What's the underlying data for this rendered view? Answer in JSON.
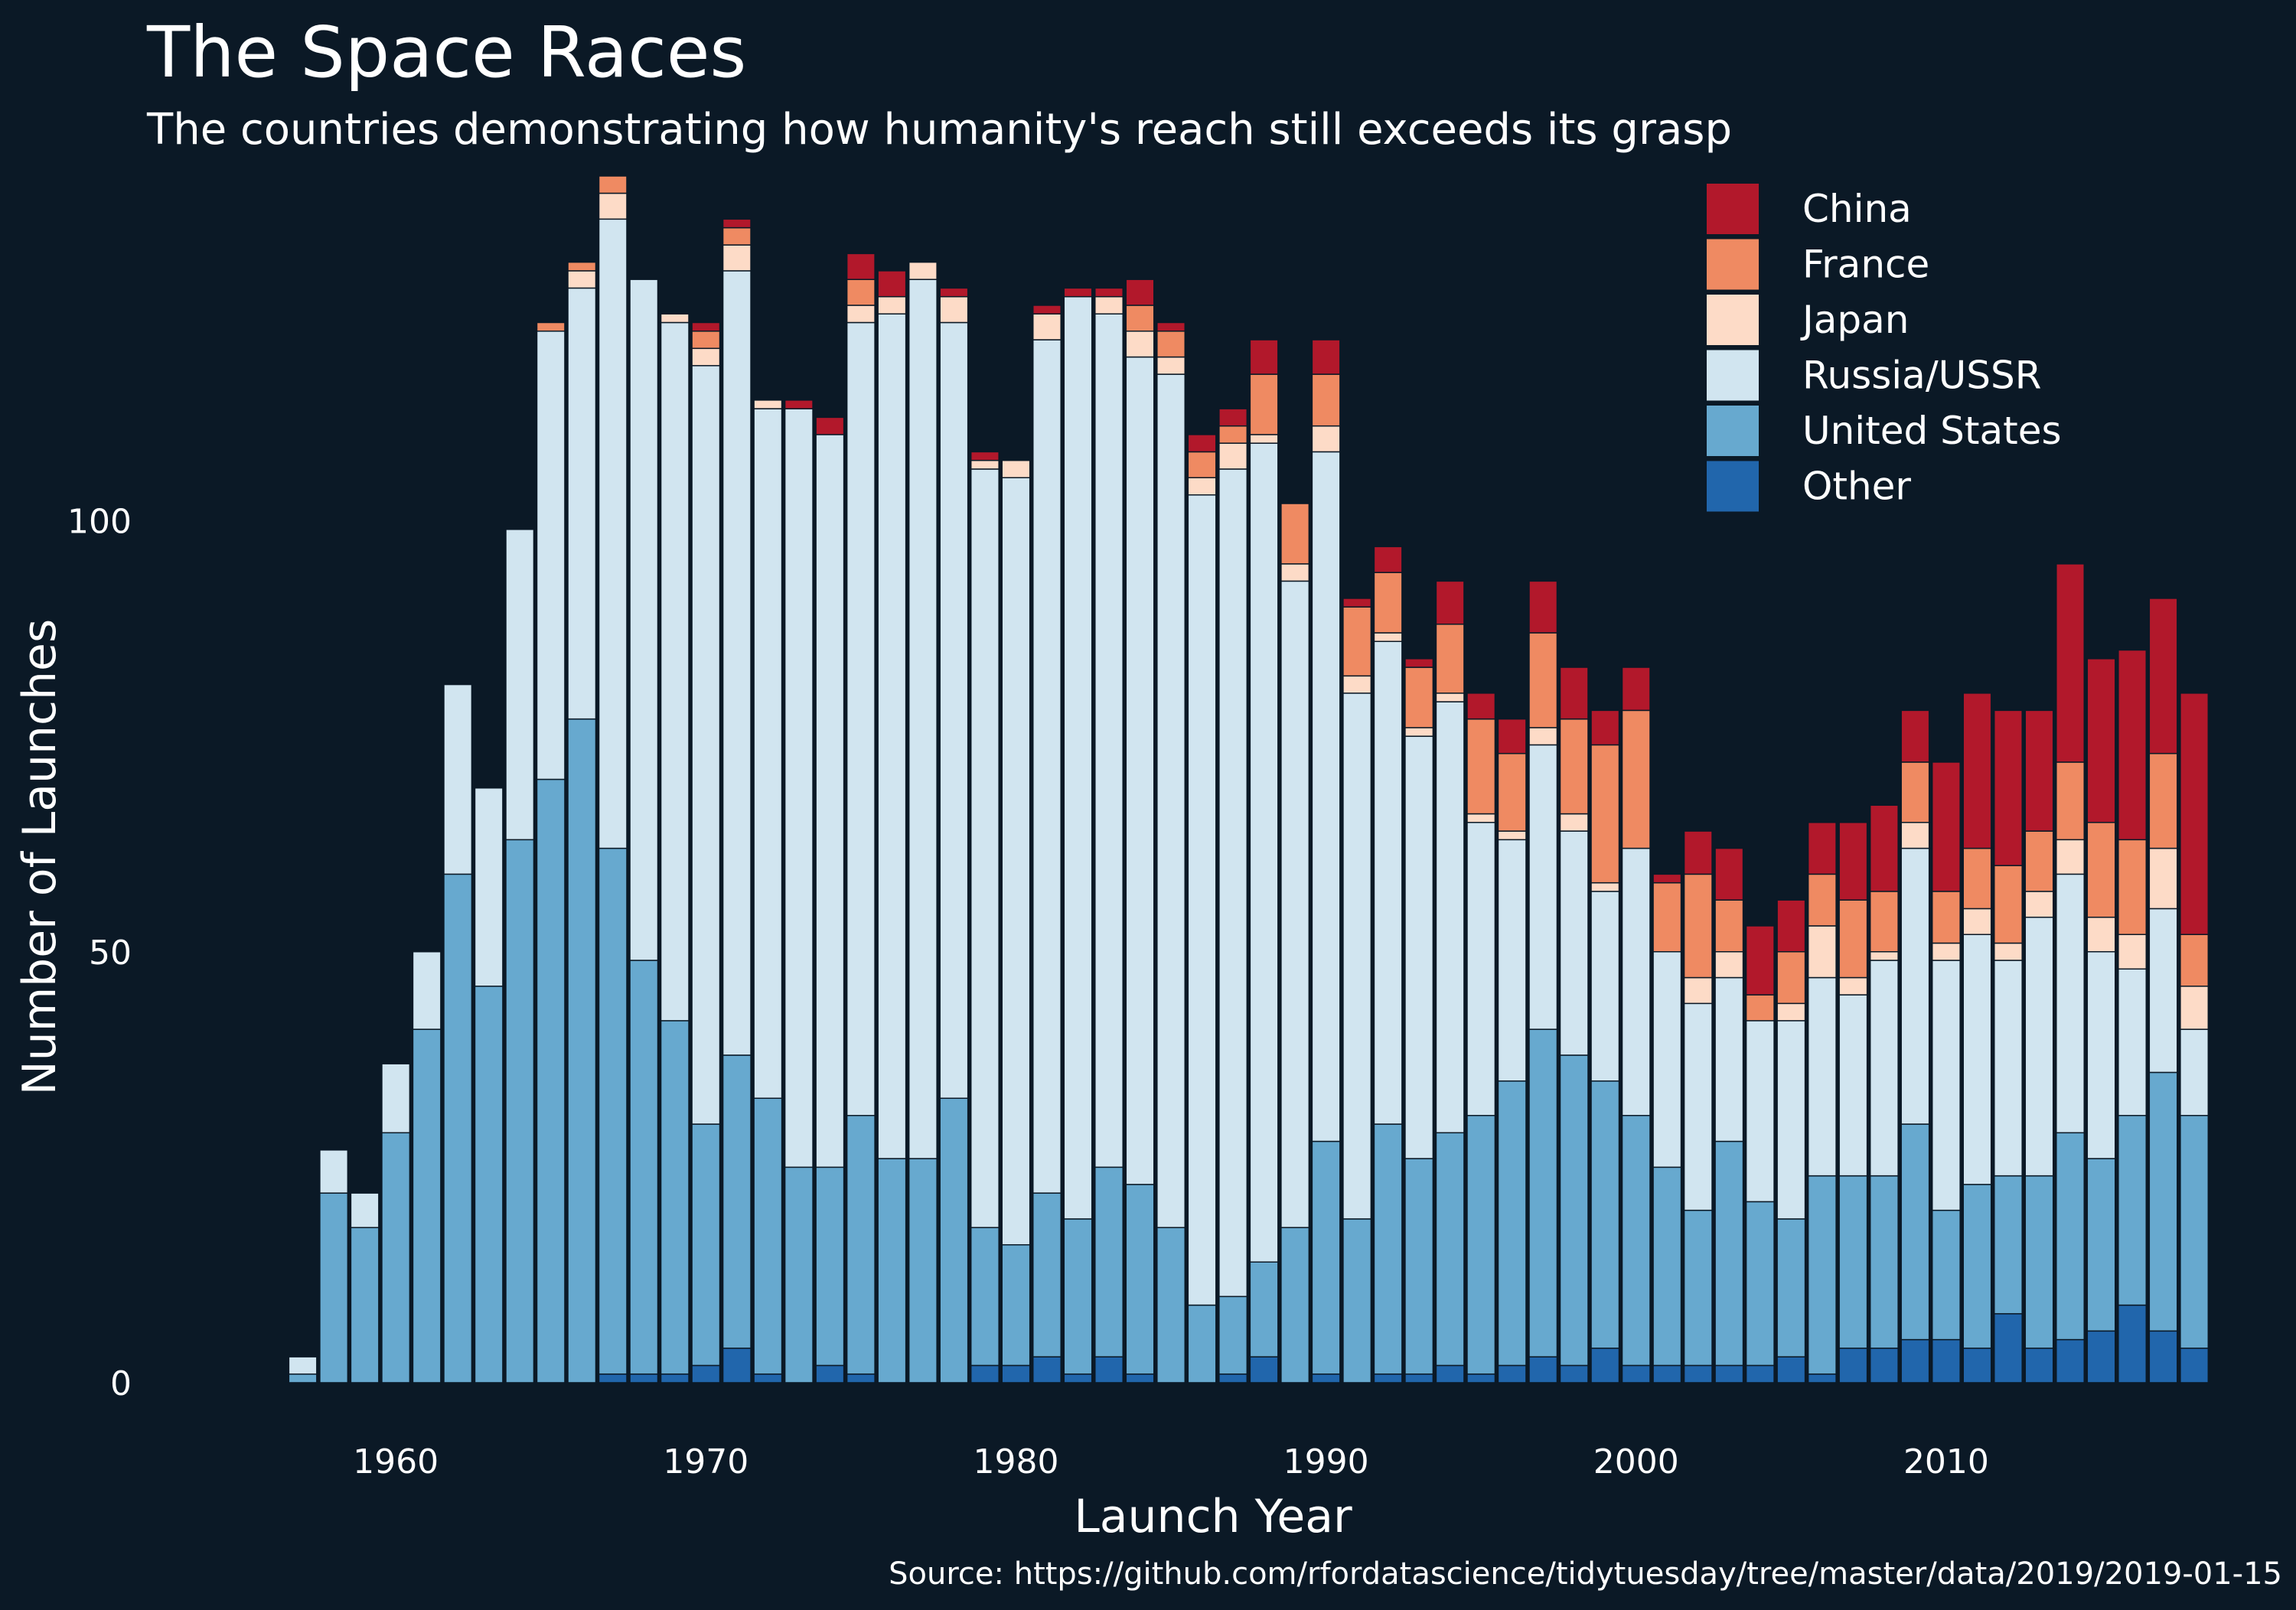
{
  "chart_data": {
    "type": "bar",
    "stacked": true,
    "title": "The Space Races",
    "subtitle": "The countries demonstrating how humanity's reach still exceeds its grasp",
    "xlabel": "Launch Year",
    "ylabel": "Number of Launches",
    "caption": "Source: https://github.com/rfordatascience/tidytuesday/tree/master/data/2019/2019-01-15",
    "xlim": [
      1953.9,
      2019.8
    ],
    "ylim": [
      -4,
      140
    ],
    "x_ticks": [
      1960,
      1970,
      1980,
      1990,
      2000,
      2010
    ],
    "y_ticks": [
      0,
      50,
      100
    ],
    "legend_position": "top-right",
    "grid": false,
    "categories": [
      1957,
      1958,
      1959,
      1960,
      1961,
      1962,
      1963,
      1964,
      1965,
      1966,
      1967,
      1968,
      1969,
      1970,
      1971,
      1972,
      1973,
      1974,
      1975,
      1976,
      1977,
      1978,
      1979,
      1980,
      1981,
      1982,
      1983,
      1984,
      1985,
      1986,
      1987,
      1988,
      1989,
      1990,
      1991,
      1992,
      1993,
      1994,
      1995,
      1996,
      1997,
      1998,
      1999,
      2000,
      2001,
      2002,
      2003,
      2004,
      2005,
      2006,
      2007,
      2008,
      2009,
      2010,
      2011,
      2012,
      2013,
      2014,
      2015,
      2016,
      2017,
      2018
    ],
    "series": [
      {
        "name": "Other",
        "color": "#2166ac",
        "values": [
          0,
          0,
          0,
          0,
          0,
          0,
          0,
          0,
          0,
          0,
          1,
          1,
          1,
          2,
          4,
          1,
          0,
          2,
          1,
          0,
          0,
          0,
          2,
          2,
          3,
          1,
          3,
          1,
          0,
          0,
          1,
          3,
          0,
          1,
          0,
          1,
          1,
          2,
          1,
          2,
          3,
          2,
          4,
          2,
          2,
          2,
          2,
          2,
          3,
          1,
          4,
          4,
          5,
          5,
          4,
          8,
          4,
          5,
          6,
          9,
          6,
          4
        ]
      },
      {
        "name": "United States",
        "color": "#67a9cf",
        "values": [
          1,
          22,
          18,
          29,
          41,
          59,
          46,
          63,
          70,
          77,
          61,
          48,
          41,
          28,
          34,
          32,
          25,
          23,
          30,
          26,
          26,
          33,
          16,
          14,
          19,
          18,
          22,
          22,
          18,
          9,
          9,
          11,
          18,
          27,
          19,
          29,
          25,
          27,
          30,
          33,
          38,
          36,
          31,
          29,
          23,
          18,
          26,
          19,
          16,
          23,
          20,
          20,
          25,
          15,
          19,
          16,
          20,
          24,
          20,
          22,
          30,
          27
        ]
      },
      {
        "name": "Russia/USSR",
        "color": "#d1e5f0",
        "values": [
          2,
          5,
          4,
          8,
          9,
          22,
          23,
          36,
          52,
          50,
          73,
          79,
          81,
          88,
          91,
          80,
          88,
          85,
          92,
          98,
          102,
          90,
          88,
          89,
          99,
          107,
          99,
          96,
          99,
          94,
          96,
          95,
          75,
          80,
          61,
          56,
          49,
          50,
          34,
          28,
          33,
          26,
          22,
          31,
          25,
          24,
          19,
          21,
          23,
          23,
          21,
          25,
          32,
          29,
          29,
          25,
          30,
          30,
          24,
          17,
          19,
          10
        ]
      },
      {
        "name": "Japan",
        "color": "#fddbc7",
        "values": [
          0,
          0,
          0,
          0,
          0,
          0,
          0,
          0,
          0,
          2,
          3,
          0,
          1,
          2,
          3,
          1,
          0,
          0,
          2,
          2,
          2,
          3,
          1,
          2,
          3,
          0,
          2,
          3,
          2,
          2,
          3,
          1,
          2,
          3,
          2,
          1,
          1,
          1,
          1,
          1,
          2,
          2,
          1,
          0,
          0,
          3,
          3,
          0,
          2,
          6,
          2,
          1,
          3,
          2,
          3,
          2,
          3,
          4,
          4,
          4,
          7,
          5
        ]
      },
      {
        "name": "France",
        "color": "#ef8a62",
        "values": [
          0,
          0,
          0,
          0,
          0,
          0,
          0,
          0,
          1,
          1,
          2,
          0,
          0,
          2,
          2,
          0,
          0,
          0,
          3,
          0,
          0,
          0,
          0,
          0,
          0,
          0,
          0,
          3,
          3,
          3,
          2,
          7,
          7,
          6,
          8,
          7,
          7,
          8,
          11,
          9,
          11,
          11,
          16,
          16,
          8,
          12,
          6,
          3,
          6,
          6,
          9,
          7,
          7,
          6,
          7,
          9,
          7,
          9,
          11,
          11,
          11,
          6
        ]
      },
      {
        "name": "China",
        "color": "#b2182b",
        "values": [
          0,
          0,
          0,
          0,
          0,
          0,
          0,
          0,
          0,
          0,
          0,
          0,
          0,
          1,
          1,
          0,
          1,
          2,
          3,
          3,
          0,
          1,
          1,
          0,
          1,
          1,
          1,
          3,
          1,
          2,
          2,
          4,
          0,
          4,
          1,
          3,
          1,
          5,
          3,
          4,
          6,
          6,
          4,
          5,
          1,
          5,
          6,
          8,
          6,
          6,
          9,
          10,
          6,
          15,
          18,
          18,
          14,
          23,
          19,
          22,
          18,
          28
        ]
      }
    ]
  }
}
